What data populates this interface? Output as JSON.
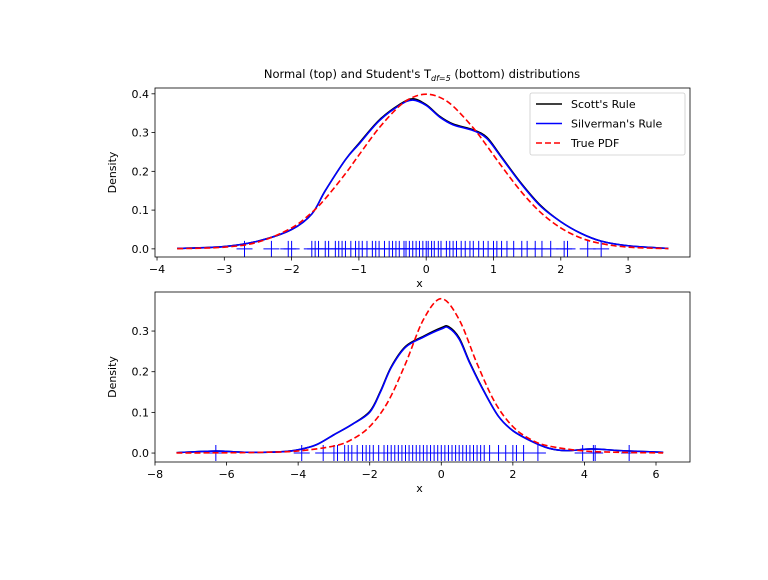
{
  "title": {
    "main": "Normal (top) and Student's T",
    "sub": "df=5",
    "rest": " (bottom) distributions"
  },
  "chart_data": [
    {
      "type": "line",
      "xlabel": "x",
      "ylabel": "Density",
      "xlim": [
        -4.03,
        3.92
      ],
      "ylim": [
        -0.021,
        0.415
      ],
      "xticks": [
        -4,
        -3,
        -2,
        -1,
        0,
        1,
        2,
        3
      ],
      "yticks": [
        "0.0",
        "0.1",
        "0.2",
        "0.3",
        "0.4"
      ],
      "grid": false,
      "legend": {
        "position": "top-right",
        "entries": [
          "Scott's Rule",
          "Silverman's Rule",
          "True PDF"
        ]
      },
      "series": [
        {
          "name": "Scott's Rule",
          "color": "#000000",
          "style": "solid",
          "x": [
            -3.7,
            -3,
            -2.5,
            -2,
            -1.7,
            -1.5,
            -1.2,
            -1,
            -0.7,
            -0.4,
            -0.2,
            0,
            0.2,
            0.4,
            0.7,
            0.9,
            1.1,
            1.4,
            1.7,
            2,
            2.3,
            2.6,
            3,
            3.6
          ],
          "y": [
            0.001,
            0.006,
            0.02,
            0.05,
            0.09,
            0.15,
            0.23,
            0.272,
            0.332,
            0.372,
            0.387,
            0.372,
            0.342,
            0.322,
            0.307,
            0.288,
            0.242,
            0.172,
            0.112,
            0.07,
            0.04,
            0.02,
            0.008,
            0.001
          ]
        },
        {
          "name": "Silverman's Rule",
          "color": "#0000ff",
          "style": "solid",
          "x": [
            -3.7,
            -3,
            -2.5,
            -2,
            -1.7,
            -1.5,
            -1.2,
            -1,
            -0.7,
            -0.4,
            -0.2,
            0,
            0.2,
            0.4,
            0.7,
            0.9,
            1.1,
            1.4,
            1.7,
            2,
            2.3,
            2.6,
            3,
            3.6
          ],
          "y": [
            0.001,
            0.006,
            0.02,
            0.05,
            0.09,
            0.15,
            0.23,
            0.27,
            0.33,
            0.37,
            0.384,
            0.37,
            0.34,
            0.32,
            0.305,
            0.285,
            0.24,
            0.17,
            0.11,
            0.07,
            0.04,
            0.02,
            0.008,
            0.001
          ]
        },
        {
          "name": "True PDF",
          "color": "#ff0000",
          "style": "dashed",
          "x": [
            -3.7,
            -3,
            -2.5,
            -2,
            -1.7,
            -1.5,
            -1.2,
            -1,
            -0.7,
            -0.4,
            -0.2,
            0,
            0.2,
            0.4,
            0.7,
            0.9,
            1.1,
            1.4,
            1.7,
            2,
            2.3,
            2.6,
            3,
            3.6
          ],
          "y": [
            0.0004,
            0.0044,
            0.0175,
            0.054,
            0.094,
            0.1295,
            0.194,
            0.242,
            0.312,
            0.368,
            0.391,
            0.399,
            0.391,
            0.368,
            0.312,
            0.266,
            0.218,
            0.15,
            0.094,
            0.054,
            0.028,
            0.0136,
            0.0044,
            0.0006
          ]
        }
      ],
      "rug": {
        "color": "#0000ff",
        "values": [
          -2.7,
          -2.3,
          -2.05,
          -2.0,
          -1.7,
          -1.65,
          -1.6,
          -1.5,
          -1.45,
          -1.35,
          -1.3,
          -1.25,
          -1.2,
          -1.12,
          -1.05,
          -1.0,
          -0.95,
          -0.88,
          -0.8,
          -0.75,
          -0.7,
          -0.62,
          -0.55,
          -0.5,
          -0.45,
          -0.4,
          -0.33,
          -0.3,
          -0.25,
          -0.2,
          -0.15,
          -0.1,
          -0.05,
          0.0,
          0.03,
          0.08,
          0.12,
          0.18,
          0.22,
          0.3,
          0.35,
          0.4,
          0.45,
          0.52,
          0.58,
          0.65,
          0.7,
          0.78,
          0.85,
          0.92,
          1.0,
          1.05,
          1.12,
          1.2,
          1.3,
          1.42,
          1.5,
          1.62,
          1.72,
          1.85,
          2.05,
          2.1,
          2.4,
          2.6
        ]
      }
    },
    {
      "type": "line",
      "xlabel": "x",
      "ylabel": "Density",
      "xlim": [
        -8.0,
        6.95
      ],
      "ylim": [
        -0.022,
        0.396
      ],
      "xticks": [
        -8,
        -6,
        -4,
        -2,
        0,
        2,
        4,
        6
      ],
      "yticks": [
        "0.0",
        "0.1",
        "0.2",
        "0.3"
      ],
      "grid": false,
      "series": [
        {
          "name": "Scott's Rule",
          "color": "#000000",
          "style": "solid",
          "x": [
            -7.4,
            -6.3,
            -5.5,
            -4.5,
            -4,
            -3.5,
            -3,
            -2.5,
            -2,
            -1.7,
            -1.4,
            -1,
            -0.5,
            0,
            0.2,
            0.5,
            0.8,
            1.2,
            1.6,
            2,
            2.5,
            3,
            3.5,
            4.2,
            5,
            6.2
          ],
          "y": [
            0.001,
            0.005,
            0.002,
            0.003,
            0.008,
            0.02,
            0.045,
            0.07,
            0.102,
            0.152,
            0.212,
            0.262,
            0.287,
            0.308,
            0.311,
            0.283,
            0.222,
            0.151,
            0.09,
            0.055,
            0.03,
            0.012,
            0.006,
            0.01,
            0.006,
            0.002
          ]
        },
        {
          "name": "Silverman's Rule",
          "color": "#0000ff",
          "style": "solid",
          "x": [
            -7.4,
            -6.3,
            -5.5,
            -4.5,
            -4,
            -3.5,
            -3,
            -2.5,
            -2,
            -1.7,
            -1.4,
            -1,
            -0.5,
            0,
            0.2,
            0.5,
            0.8,
            1.2,
            1.6,
            2,
            2.5,
            3,
            3.5,
            4.2,
            5,
            6.2
          ],
          "y": [
            0.001,
            0.005,
            0.002,
            0.003,
            0.008,
            0.02,
            0.045,
            0.07,
            0.1,
            0.15,
            0.21,
            0.26,
            0.285,
            0.305,
            0.308,
            0.28,
            0.22,
            0.15,
            0.09,
            0.055,
            0.03,
            0.012,
            0.006,
            0.01,
            0.006,
            0.002
          ]
        },
        {
          "name": "True PDF",
          "color": "#ff0000",
          "style": "dashed",
          "x": [
            -7.4,
            -6,
            -5,
            -4,
            -3,
            -2.5,
            -2,
            -1.5,
            -1,
            -0.5,
            0,
            0.5,
            1,
            1.5,
            2,
            2.5,
            3,
            4,
            5,
            6.2
          ],
          "y": [
            0.0002,
            0.0007,
            0.0018,
            0.0051,
            0.0173,
            0.0333,
            0.0651,
            0.1245,
            0.2197,
            0.328,
            0.3796,
            0.328,
            0.2197,
            0.1245,
            0.0651,
            0.0333,
            0.0173,
            0.0051,
            0.0018,
            0.0004
          ]
        }
      ],
      "rug": {
        "color": "#0000ff",
        "values": [
          -6.3,
          -3.9,
          -3.3,
          -3.0,
          -2.9,
          -2.7,
          -2.6,
          -2.5,
          -2.35,
          -2.2,
          -2.1,
          -2.0,
          -1.9,
          -1.75,
          -1.6,
          -1.5,
          -1.4,
          -1.3,
          -1.2,
          -1.1,
          -1.0,
          -0.9,
          -0.8,
          -0.7,
          -0.6,
          -0.5,
          -0.4,
          -0.3,
          -0.2,
          -0.1,
          0.0,
          0.1,
          0.2,
          0.3,
          0.4,
          0.5,
          0.6,
          0.7,
          0.8,
          0.9,
          1.0,
          1.1,
          1.2,
          1.35,
          1.6,
          1.8,
          2.0,
          2.1,
          2.3,
          2.7,
          3.95,
          4.25,
          4.3,
          5.25
        ]
      }
    }
  ]
}
